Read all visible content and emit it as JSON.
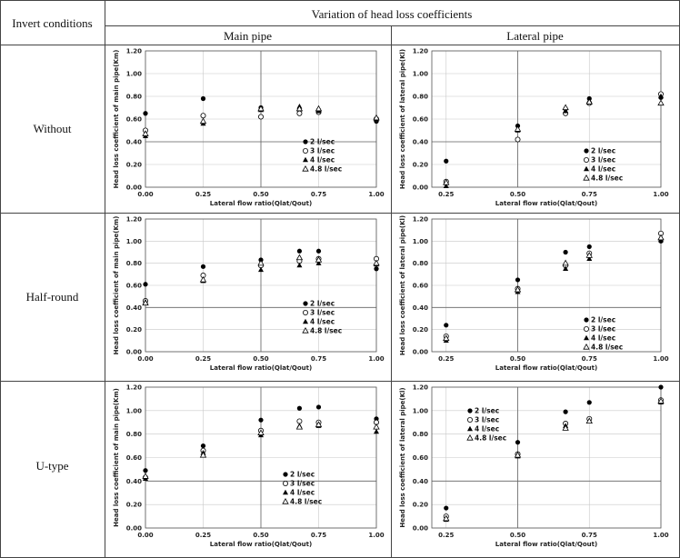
{
  "header": {
    "col1": "Invert conditions",
    "group": "Variation of head loss coefficients",
    "main": "Main pipe",
    "lateral": "Lateral pipe"
  },
  "rows": [
    "Without",
    "Half-round",
    "U-type"
  ],
  "legend": [
    "2 l/sec",
    "3 l/sec",
    "4 l/sec",
    "4.8 l/sec"
  ],
  "chart_data": [
    {
      "id": "without-main",
      "type": "scatter",
      "xlabel": "Lateral flow ratio(Qlat/Qout)",
      "ylabel": "Head loss coefficient of main pipe(Km)",
      "xlim": [
        0,
        1
      ],
      "ylim": [
        0,
        1.2
      ],
      "xticks": [
        "0.00",
        "0.25",
        "0.50",
        "0.75",
        "1.00"
      ],
      "yticks": [
        "0.00",
        "0.20",
        "0.40",
        "0.60",
        "0.80",
        "1.00",
        "1.20"
      ],
      "x": [
        0,
        0.25,
        0.5,
        0.667,
        0.75,
        1.0
      ],
      "series": [
        {
          "name": "2 l/sec",
          "values": [
            0.65,
            0.78,
            0.7,
            0.68,
            0.68,
            0.58
          ]
        },
        {
          "name": "3 l/sec",
          "values": [
            0.5,
            0.63,
            0.62,
            0.65,
            0.66,
            0.6
          ]
        },
        {
          "name": "4 l/sec",
          "values": [
            0.45,
            0.56,
            0.68,
            0.71,
            0.67,
            0.6
          ]
        },
        {
          "name": "4.8 l/sec",
          "values": [
            0.47,
            0.58,
            0.69,
            0.69,
            0.69,
            0.61
          ]
        }
      ],
      "legend": "bottom-right"
    },
    {
      "id": "without-lateral",
      "type": "scatter",
      "xlabel": "Lateral flow ratio(Qlat/Qout)",
      "ylabel": "Head loss coefficient of lateral pipe(Kl)",
      "xlim": [
        0.2,
        1
      ],
      "ylim": [
        0,
        1.2
      ],
      "xticks": [
        "0.25",
        "0.50",
        "0.75",
        "1.00"
      ],
      "yticks": [
        "0.00",
        "0.20",
        "0.40",
        "0.60",
        "0.80",
        "1.00",
        "1.20"
      ],
      "x": [
        0.25,
        0.5,
        0.667,
        0.75,
        1.0
      ],
      "series": [
        {
          "name": "2 l/sec",
          "values": [
            0.23,
            0.54,
            0.69,
            0.78,
            0.79
          ]
        },
        {
          "name": "3 l/sec",
          "values": [
            0.05,
            0.42,
            0.65,
            0.74,
            0.82
          ]
        },
        {
          "name": "4 l/sec",
          "values": [
            0.01,
            0.5,
            0.67,
            0.76,
            0.8
          ]
        },
        {
          "name": "4.8 l/sec",
          "values": [
            0.04,
            0.51,
            0.7,
            0.75,
            0.74
          ]
        }
      ],
      "legend": "bottom-right"
    },
    {
      "id": "half-main",
      "type": "scatter",
      "xlabel": "Lateral flow ratio(Qlat/Qout)",
      "ylabel": "Head loss coefficient of main pipe(Km)",
      "xlim": [
        0,
        1
      ],
      "ylim": [
        0,
        1.2
      ],
      "xticks": [
        "0.00",
        "0.25",
        "0.50",
        "0.75",
        "1.00"
      ],
      "yticks": [
        "0.00",
        "0.20",
        "0.40",
        "0.60",
        "0.80",
        "1.00",
        "1.20"
      ],
      "x": [
        0,
        0.25,
        0.5,
        0.667,
        0.75,
        1.0
      ],
      "series": [
        {
          "name": "2 l/sec",
          "values": [
            0.61,
            0.77,
            0.83,
            0.91,
            0.91,
            0.75
          ]
        },
        {
          "name": "3 l/sec",
          "values": [
            0.46,
            0.69,
            0.78,
            0.82,
            0.84,
            0.84
          ]
        },
        {
          "name": "4 l/sec",
          "values": [
            0.45,
            0.64,
            0.74,
            0.78,
            0.8,
            0.79
          ]
        },
        {
          "name": "4.8 l/sec",
          "values": [
            0.44,
            0.65,
            0.8,
            0.85,
            0.83,
            0.8
          ]
        }
      ],
      "legend": "bottom-right"
    },
    {
      "id": "half-lateral",
      "type": "scatter",
      "xlabel": "Lateral flow ratio(Qlat/Qout)",
      "ylabel": "Head loss coefficient of lateral pipe(Kl)",
      "xlim": [
        0.2,
        1
      ],
      "ylim": [
        0,
        1.2
      ],
      "xticks": [
        "0.25",
        "0.50",
        "0.75",
        "1.00"
      ],
      "yticks": [
        "0.00",
        "0.20",
        "0.40",
        "0.60",
        "0.80",
        "1.00",
        "1.20"
      ],
      "x": [
        0.25,
        0.5,
        0.667,
        0.75,
        1.0
      ],
      "series": [
        {
          "name": "2 l/sec",
          "values": [
            0.24,
            0.65,
            0.9,
            0.95,
            1.0
          ]
        },
        {
          "name": "3 l/sec",
          "values": [
            0.14,
            0.57,
            0.78,
            0.89,
            1.07
          ]
        },
        {
          "name": "4 l/sec",
          "values": [
            0.1,
            0.54,
            0.75,
            0.84,
            1.01
          ]
        },
        {
          "name": "4.8 l/sec",
          "values": [
            0.12,
            0.56,
            0.8,
            0.87,
            1.03
          ]
        }
      ],
      "legend": "bottom-right"
    },
    {
      "id": "u-main",
      "type": "scatter",
      "xlabel": "Lateral flow ratio(Qlat/Qout)",
      "ylabel": "Head loss coefficient of main pipe(Km)",
      "xlim": [
        0,
        1
      ],
      "ylim": [
        0,
        1.2
      ],
      "xticks": [
        "0.00",
        "0.25",
        "0.50",
        "0.75",
        "1.00"
      ],
      "yticks": [
        "0.00",
        "0.20",
        "0.40",
        "0.60",
        "0.80",
        "1.00",
        "1.20"
      ],
      "x": [
        0,
        0.25,
        0.5,
        0.667,
        0.75,
        1.0
      ],
      "series": [
        {
          "name": "2 l/sec",
          "values": [
            0.49,
            0.7,
            0.92,
            1.02,
            1.03,
            0.93
          ]
        },
        {
          "name": "3 l/sec",
          "values": [
            0.43,
            0.66,
            0.83,
            0.91,
            0.9,
            0.9
          ]
        },
        {
          "name": "4 l/sec",
          "values": [
            0.42,
            0.64,
            0.79,
            0.87,
            0.87,
            0.82
          ]
        },
        {
          "name": "4.8 l/sec",
          "values": [
            0.44,
            0.62,
            0.81,
            0.86,
            0.88,
            0.86
          ]
        }
      ],
      "legend": "bottom-right"
    },
    {
      "id": "u-lateral",
      "type": "scatter",
      "xlabel": "Lateral flow ratio(Qlat/Qout)",
      "ylabel": "Head loss coefficient of lateral pipe(Kl)",
      "xlim": [
        0.2,
        1
      ],
      "ylim": [
        0,
        1.2
      ],
      "xticks": [
        "0.25",
        "0.50",
        "0.75",
        "1.00"
      ],
      "yticks": [
        "0.00",
        "0.20",
        "0.40",
        "0.60",
        "0.80",
        "1.00",
        "1.20"
      ],
      "x": [
        0.25,
        0.5,
        0.667,
        0.75,
        1.0
      ],
      "series": [
        {
          "name": "2 l/sec",
          "values": [
            0.17,
            0.73,
            0.99,
            1.07,
            1.2
          ]
        },
        {
          "name": "3 l/sec",
          "values": [
            0.1,
            0.63,
            0.89,
            0.93,
            1.09
          ]
        },
        {
          "name": "4 l/sec",
          "values": [
            0.07,
            0.61,
            0.87,
            0.91,
            1.07
          ]
        },
        {
          "name": "4.8 l/sec",
          "values": [
            0.08,
            0.62,
            0.85,
            0.91,
            1.08
          ]
        }
      ],
      "legend": "top-left"
    }
  ]
}
